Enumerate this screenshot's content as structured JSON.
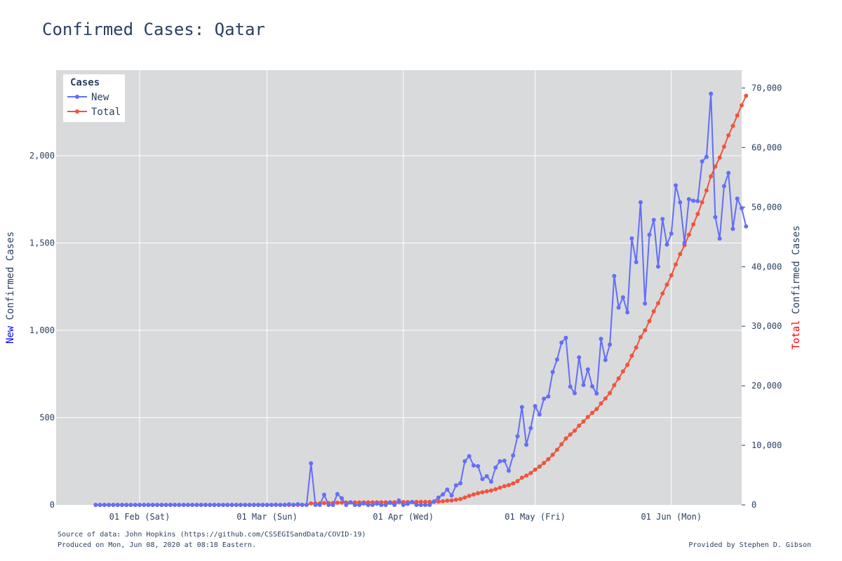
{
  "chart_data": {
    "type": "line",
    "title": "Confirmed Cases: Qatar",
    "x_start": "2020-01-22",
    "x_range": [
      "2020-01-13",
      "2020-06-17"
    ],
    "x_ticks": [
      {
        "date": "2020-02-01",
        "label": "01 Feb (Sat)"
      },
      {
        "date": "2020-03-01",
        "label": "01 Mar (Sun)"
      },
      {
        "date": "2020-04-01",
        "label": "01 Apr (Wed)"
      },
      {
        "date": "2020-05-01",
        "label": "01 May (Fri)"
      },
      {
        "date": "2020-06-01",
        "label": "01 Jun (Mon)"
      }
    ],
    "yaxis_left": {
      "title_prefix": "New",
      "title_rest": " Confirmed Cases",
      "title_prefix_color": "#0000ff",
      "range": [
        0,
        2490
      ],
      "ticks": [
        0,
        500,
        1000,
        1500,
        2000
      ],
      "tick_labels": [
        "0",
        "500",
        "1,000",
        "1,500",
        "2,000"
      ]
    },
    "yaxis_right": {
      "title_prefix": "Total",
      "title_rest": " Confirmed Cases",
      "title_prefix_color": "#ff0000",
      "range": [
        0,
        73000
      ],
      "ticks": [
        0,
        10000,
        20000,
        30000,
        40000,
        50000,
        60000,
        70000
      ],
      "tick_labels": [
        "0",
        "10,000",
        "20,000",
        "30,000",
        "40,000",
        "50,000",
        "60,000",
        "70,000"
      ]
    },
    "grid": true,
    "legend": {
      "title": "Cases",
      "position": "top-left"
    },
    "series": [
      {
        "name": "New",
        "axis": "left",
        "color": "#636efa",
        "values": [
          0,
          0,
          0,
          0,
          0,
          0,
          0,
          0,
          0,
          0,
          0,
          0,
          0,
          0,
          0,
          0,
          0,
          0,
          0,
          0,
          0,
          0,
          0,
          0,
          0,
          0,
          0,
          0,
          0,
          0,
          0,
          0,
          0,
          0,
          0,
          0,
          0,
          0,
          0,
          0,
          0,
          1,
          0,
          0,
          3,
          0,
          4,
          0,
          0,
          238,
          0,
          0,
          58,
          0,
          0,
          62,
          38,
          0,
          15,
          0,
          0,
          8,
          0,
          0,
          7,
          0,
          0,
          12,
          0,
          25,
          0,
          6,
          16,
          0,
          0,
          0,
          0,
          20,
          42,
          60,
          88,
          54,
          112,
          124,
          250,
          279,
          226,
          222,
          148,
          164,
          133,
          214,
          250,
          253,
          196,
          283,
          393,
          560,
          345,
          440,
          566,
          518,
          608,
          621,
          761,
          833,
          929,
          957,
          677,
          640,
          845,
          687,
          776,
          679,
          638,
          951,
          830,
          918,
          1311,
          1130,
          1189,
          1103,
          1526,
          1390,
          1733,
          1153,
          1547,
          1632,
          1365,
          1637,
          1491,
          1554,
          1830,
          1733,
          1501,
          1751,
          1742,
          1740,
          1967,
          1993,
          2355,
          1648,
          1525,
          1826,
          1901,
          1581,
          1754,
          1700,
          1595
        ]
      },
      {
        "name": "Total",
        "axis": "right",
        "color": "#ef553b",
        "values": [
          0,
          0,
          0,
          0,
          0,
          0,
          0,
          0,
          0,
          0,
          0,
          0,
          0,
          0,
          0,
          0,
          0,
          0,
          0,
          0,
          0,
          0,
          0,
          0,
          0,
          0,
          0,
          0,
          0,
          0,
          0,
          0,
          0,
          0,
          0,
          0,
          0,
          0,
          0,
          0,
          0,
          1,
          1,
          1,
          4,
          4,
          8,
          8,
          8,
          246,
          246,
          246,
          304,
          304,
          304,
          366,
          404,
          404,
          419,
          419,
          419,
          427,
          427,
          427,
          434,
          434,
          434,
          446,
          446,
          471,
          471,
          477,
          493,
          493,
          493,
          493,
          493,
          513,
          555,
          615,
          703,
          757,
          869,
          993,
          1243,
          1522,
          1748,
          1970,
          2118,
          2282,
          2415,
          2629,
          2879,
          3132,
          3328,
          3611,
          4004,
          4564,
          4909,
          5349,
          5915,
          6433,
          7041,
          7662,
          8423,
          9256,
          10185,
          11142,
          11819,
          12459,
          13304,
          13991,
          14767,
          15446,
          16084,
          17035,
          17865,
          18783,
          20094,
          21224,
          22413,
          23516,
          25042,
          26432,
          28165,
          29318,
          30865,
          32497,
          33862,
          35499,
          36990,
          38544,
          40374,
          42107,
          43608,
          45359,
          47101,
          48841,
          50808,
          52801,
          55156,
          56804,
          58329,
          60155,
          62056,
          63637,
          65391,
          67091,
          68686
        ]
      }
    ],
    "footer": {
      "source": "Source of data: John Hopkins (https://github.com/CSSEGISandData/COVID-19)",
      "produced": "Produced on Mon, Jun 08, 2020 at 08:18 Eastern.",
      "credit": "Provided by Stephen D. Gibson"
    }
  }
}
